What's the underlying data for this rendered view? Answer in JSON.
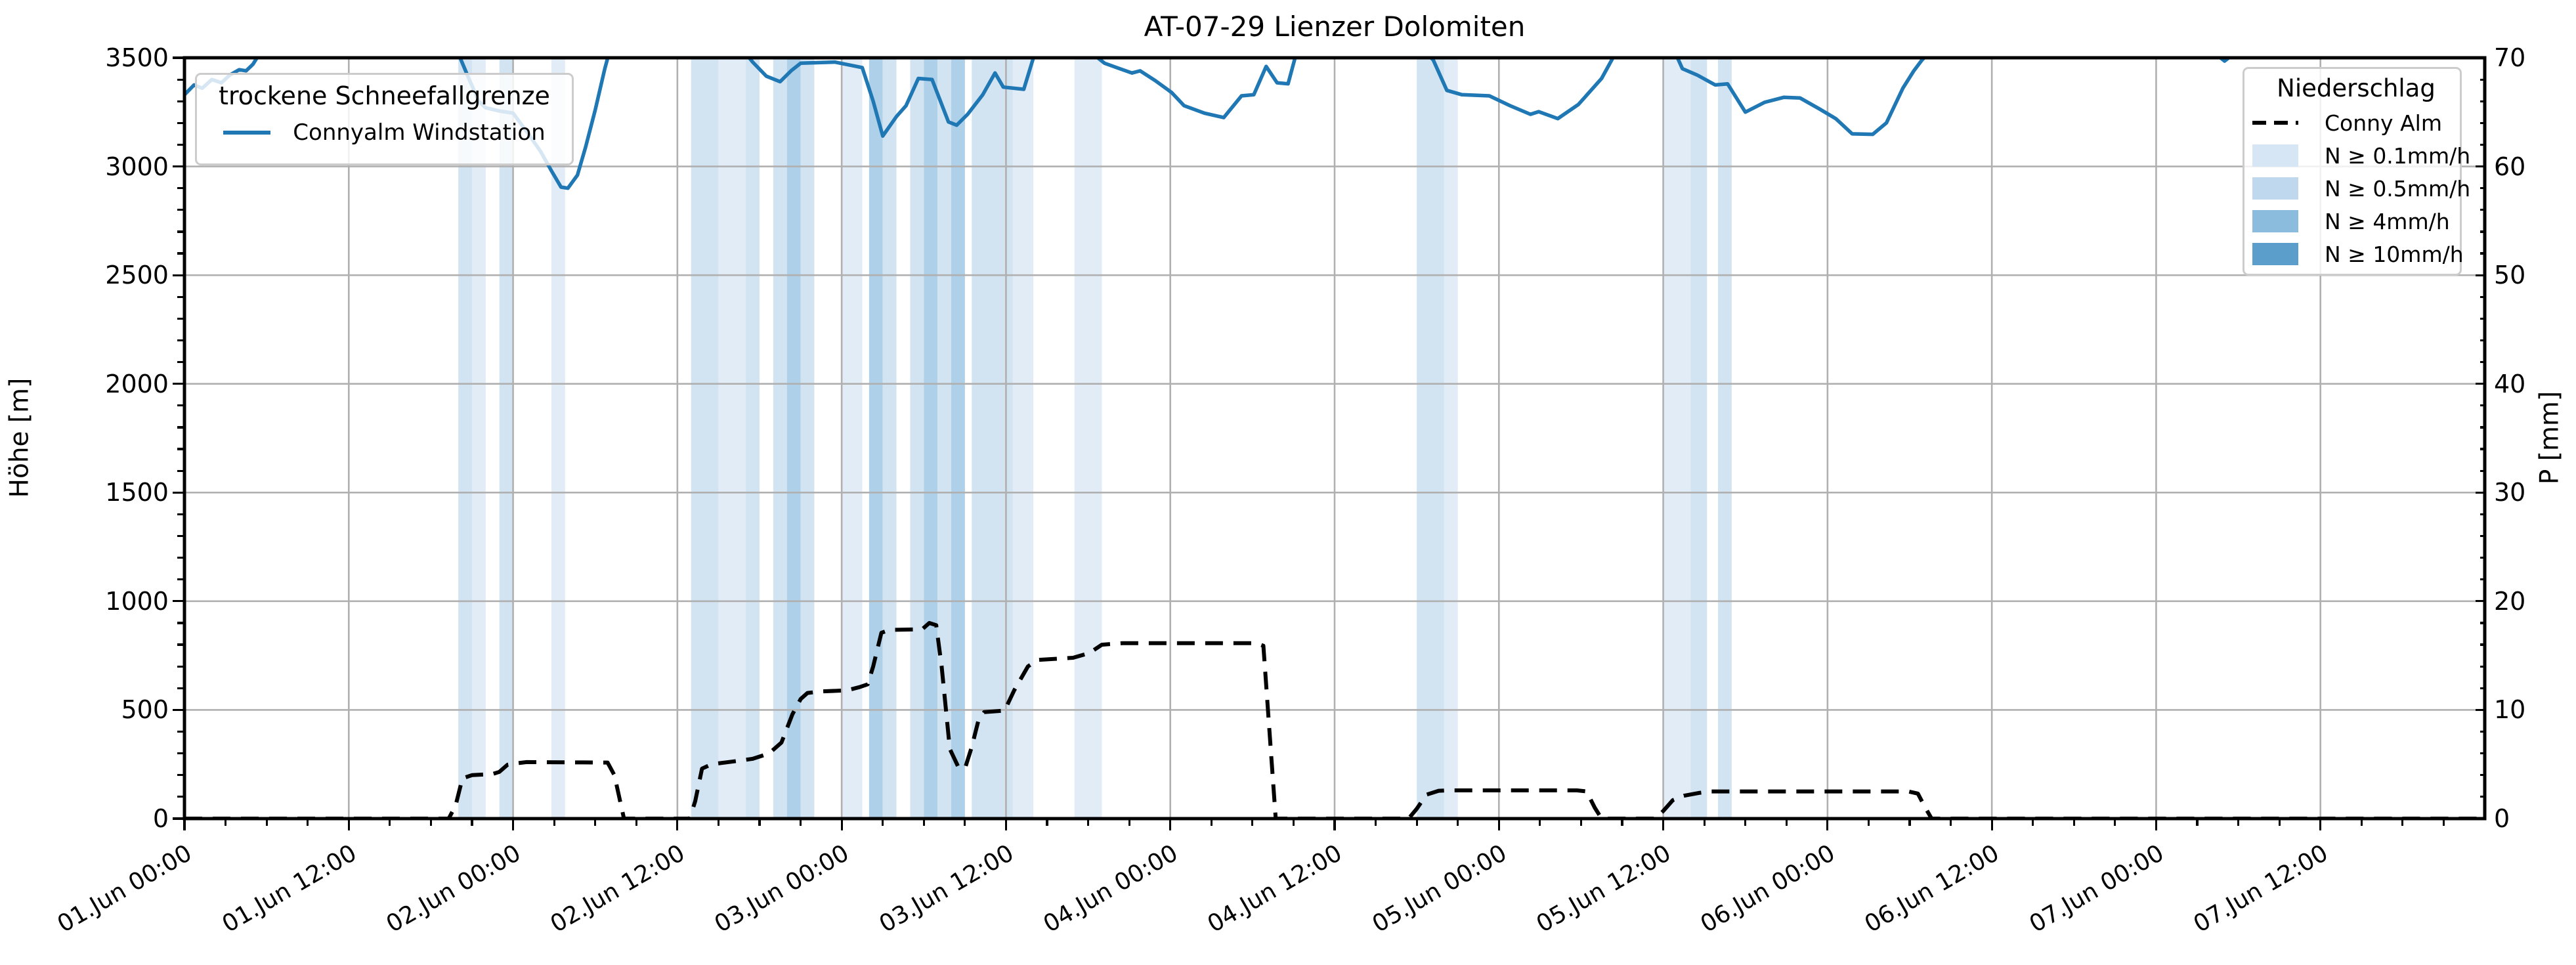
{
  "title": "AT-07-29 Lienzer Dolomiten",
  "axes": {
    "left_label": "Höhe [m]",
    "right_label": "P [mm]",
    "left_ticks": [
      "0",
      "500",
      "1000",
      "1500",
      "2000",
      "2500",
      "3000",
      "3500"
    ],
    "right_ticks": [
      "0",
      "10",
      "20",
      "30",
      "40",
      "50",
      "60",
      "70"
    ],
    "ylim_left": [
      0,
      3500
    ],
    "ylim_right": [
      0,
      70
    ]
  },
  "x_axis": {
    "range_hours": [
      0,
      168
    ],
    "major_step_hours": 12,
    "minor_step_hours": 3,
    "ticks": [
      {
        "t": 0,
        "label": "01.Jun 00:00"
      },
      {
        "t": 12,
        "label": "01.Jun 12:00"
      },
      {
        "t": 24,
        "label": "02.Jun 00:00"
      },
      {
        "t": 36,
        "label": "02.Jun 12:00"
      },
      {
        "t": 48,
        "label": "03.Jun 00:00"
      },
      {
        "t": 60,
        "label": "03.Jun 12:00"
      },
      {
        "t": 72,
        "label": "04.Jun 00:00"
      },
      {
        "t": 84,
        "label": "04.Jun 12:00"
      },
      {
        "t": 96,
        "label": "05.Jun 00:00"
      },
      {
        "t": 108,
        "label": "05.Jun 12:00"
      },
      {
        "t": 120,
        "label": "06.Jun 00:00"
      },
      {
        "t": 132,
        "label": "06.Jun 12:00"
      },
      {
        "t": 144,
        "label": "07.Jun 00:00"
      },
      {
        "t": 156,
        "label": "07.Jun 12:00"
      }
    ]
  },
  "legend_left": {
    "title": "trockene Schneefallgrenze",
    "items": [
      {
        "label": "Connyalm Windstation",
        "color": "#1f77b4",
        "style": "solid-line"
      }
    ]
  },
  "legend_right": {
    "title": "Niederschlag",
    "line_item": {
      "label": "Conny Alm",
      "style": "dashed-line",
      "color": "#000000"
    },
    "band_items": [
      {
        "label": "N ≥ 0.1mm/h",
        "color": "#d7e6f5"
      },
      {
        "label": "N ≥ 0.5mm/h",
        "color": "#c0d8ee"
      },
      {
        "label": "N ≥ 4mm/h",
        "color": "#8cbcdd"
      },
      {
        "label": "N ≥ 10mm/h",
        "color": "#5b9dcb"
      }
    ]
  },
  "chart_data": {
    "type": "line",
    "title": "AT-07-29 Lienzer Dolomiten",
    "xlabel": "",
    "ylabel_left": "Höhe [m]",
    "ylabel_right": "P [mm]",
    "x_unit": "hours since 01.Jun 00:00",
    "xlim_hours": [
      0,
      168
    ],
    "ylim_left": [
      0,
      3500
    ],
    "ylim_right": [
      0,
      70
    ],
    "grid": true,
    "colors": {
      "line_blue": "#1f77b4",
      "line_dashed": "#000000",
      "grid": "#b0b0b0"
    },
    "band_plot_colors": {
      "0.1": "#e2ecf7",
      "0.5": "#d2e3f2",
      "4": "#aed0e8",
      "10": "#86b8da"
    },
    "series": [
      {
        "name": "Connyalm Windstation",
        "axis": "left",
        "style": "solid",
        "color": "#1f77b4",
        "note": "values above 3500 are clipped at plot top",
        "points": [
          [
            0,
            3330
          ],
          [
            0.7,
            3375
          ],
          [
            1.3,
            3360
          ],
          [
            2,
            3400
          ],
          [
            2.7,
            3385
          ],
          [
            3.3,
            3420
          ],
          [
            4,
            3445
          ],
          [
            4.5,
            3440
          ],
          [
            5,
            3470
          ],
          [
            5.5,
            3520
          ],
          [
            20,
            3520
          ],
          [
            20.8,
            3400
          ],
          [
            21.5,
            3300
          ],
          [
            22,
            3270
          ],
          [
            23,
            3255
          ],
          [
            24,
            3245
          ],
          [
            25,
            3160
          ],
          [
            26,
            3070
          ],
          [
            26.8,
            2980
          ],
          [
            27.5,
            2905
          ],
          [
            28,
            2900
          ],
          [
            28.7,
            2960
          ],
          [
            29.3,
            3090
          ],
          [
            30,
            3260
          ],
          [
            30.7,
            3450
          ],
          [
            31,
            3520
          ],
          [
            41,
            3520
          ],
          [
            41.5,
            3480
          ],
          [
            42.5,
            3415
          ],
          [
            43.5,
            3390
          ],
          [
            44.3,
            3440
          ],
          [
            45,
            3475
          ],
          [
            47.5,
            3480
          ],
          [
            49.5,
            3455
          ],
          [
            50.3,
            3300
          ],
          [
            51,
            3140
          ],
          [
            52,
            3230
          ],
          [
            52.7,
            3280
          ],
          [
            53.6,
            3405
          ],
          [
            54.6,
            3400
          ],
          [
            55.8,
            3205
          ],
          [
            56.4,
            3190
          ],
          [
            57.2,
            3240
          ],
          [
            58.3,
            3330
          ],
          [
            59.2,
            3430
          ],
          [
            59.8,
            3365
          ],
          [
            61.3,
            3355
          ],
          [
            62.1,
            3520
          ],
          [
            66.3,
            3520
          ],
          [
            67.2,
            3475
          ],
          [
            68.3,
            3450
          ],
          [
            69.2,
            3430
          ],
          [
            69.8,
            3440
          ],
          [
            70.9,
            3395
          ],
          [
            72.1,
            3340
          ],
          [
            73,
            3280
          ],
          [
            74.5,
            3245
          ],
          [
            75.9,
            3225
          ],
          [
            77.2,
            3325
          ],
          [
            78.1,
            3330
          ],
          [
            79,
            3460
          ],
          [
            79.8,
            3385
          ],
          [
            80.6,
            3380
          ],
          [
            81.2,
            3520
          ],
          [
            90.7,
            3520
          ],
          [
            91.2,
            3490
          ],
          [
            92.2,
            3350
          ],
          [
            93.3,
            3330
          ],
          [
            95.3,
            3325
          ],
          [
            96.8,
            3280
          ],
          [
            98.3,
            3240
          ],
          [
            98.9,
            3252
          ],
          [
            100.3,
            3220
          ],
          [
            101.8,
            3285
          ],
          [
            103.5,
            3405
          ],
          [
            104.5,
            3520
          ],
          [
            108.9,
            3520
          ],
          [
            109.4,
            3450
          ],
          [
            110.5,
            3420
          ],
          [
            111.8,
            3375
          ],
          [
            112.7,
            3380
          ],
          [
            114,
            3250
          ],
          [
            115.4,
            3295
          ],
          [
            116.8,
            3318
          ],
          [
            118,
            3315
          ],
          [
            119.4,
            3265
          ],
          [
            120.6,
            3220
          ],
          [
            121.8,
            3150
          ],
          [
            123.3,
            3148
          ],
          [
            124.3,
            3200
          ],
          [
            125.5,
            3360
          ],
          [
            126.3,
            3440
          ],
          [
            126.9,
            3490
          ],
          [
            127.4,
            3520
          ],
          [
            148.3,
            3520
          ],
          [
            149,
            3485
          ],
          [
            149.7,
            3520
          ],
          [
            168,
            3520
          ]
        ]
      },
      {
        "name": "Conny Alm",
        "axis": "left",
        "style": "dashed",
        "color": "#000000",
        "points": [
          [
            0,
            0
          ],
          [
            19.3,
            0
          ],
          [
            19.8,
            60
          ],
          [
            20.3,
            185
          ],
          [
            21,
            200
          ],
          [
            22.5,
            205
          ],
          [
            23,
            215
          ],
          [
            23.6,
            248
          ],
          [
            24.3,
            255
          ],
          [
            25,
            260
          ],
          [
            30.9,
            258
          ],
          [
            31.4,
            200
          ],
          [
            32.1,
            0
          ],
          [
            36.9,
            0
          ],
          [
            37.3,
            80
          ],
          [
            37.8,
            230
          ],
          [
            38.5,
            250
          ],
          [
            40,
            262
          ],
          [
            41.5,
            275
          ],
          [
            42.7,
            300
          ],
          [
            43.6,
            350
          ],
          [
            44.4,
            480
          ],
          [
            45,
            550
          ],
          [
            45.5,
            578
          ],
          [
            46.5,
            585
          ],
          [
            48.4,
            590
          ],
          [
            49.3,
            605
          ],
          [
            49.9,
            618
          ],
          [
            50.3,
            700
          ],
          [
            50.9,
            855
          ],
          [
            51.5,
            868
          ],
          [
            53.2,
            870
          ],
          [
            53.9,
            872
          ],
          [
            54.4,
            900
          ],
          [
            54.9,
            890
          ],
          [
            55.3,
            700
          ],
          [
            55.9,
            320
          ],
          [
            56.5,
            240
          ],
          [
            57,
            230
          ],
          [
            57.5,
            330
          ],
          [
            58,
            455
          ],
          [
            58.4,
            490
          ],
          [
            59.9,
            497
          ],
          [
            60.6,
            590
          ],
          [
            61.6,
            700
          ],
          [
            62.3,
            730
          ],
          [
            64.9,
            740
          ],
          [
            66.1,
            762
          ],
          [
            67,
            800
          ],
          [
            68.5,
            807
          ],
          [
            78.3,
            807
          ],
          [
            78.8,
            795
          ],
          [
            79.3,
            350
          ],
          [
            79.7,
            0
          ],
          [
            89.4,
            0
          ],
          [
            90,
            45
          ],
          [
            90.7,
            110
          ],
          [
            91.6,
            128
          ],
          [
            92.2,
            130
          ],
          [
            101.7,
            130
          ],
          [
            102.4,
            125
          ],
          [
            103,
            50
          ],
          [
            103.5,
            0
          ],
          [
            107.4,
            0
          ],
          [
            108,
            35
          ],
          [
            108.7,
            85
          ],
          [
            109.5,
            105
          ],
          [
            110.6,
            118
          ],
          [
            111.5,
            125
          ],
          [
            125.9,
            125
          ],
          [
            126.6,
            115
          ],
          [
            127.1,
            55
          ],
          [
            127.6,
            0
          ],
          [
            168,
            0
          ]
        ]
      }
    ],
    "precip_bands": [
      {
        "start": 20,
        "end": 21,
        "class": "0.5"
      },
      {
        "start": 21,
        "end": 22,
        "class": "0.1"
      },
      {
        "start": 23,
        "end": 24,
        "class": "0.5"
      },
      {
        "start": 26.8,
        "end": 27.8,
        "class": "0.1"
      },
      {
        "start": 37,
        "end": 39,
        "class": "0.5"
      },
      {
        "start": 39,
        "end": 41,
        "class": "0.1"
      },
      {
        "start": 41,
        "end": 42,
        "class": "0.5"
      },
      {
        "start": 43,
        "end": 44,
        "class": "0.5"
      },
      {
        "start": 44,
        "end": 45,
        "class": "4"
      },
      {
        "start": 45,
        "end": 46,
        "class": "0.5"
      },
      {
        "start": 48,
        "end": 49.5,
        "class": "0.1"
      },
      {
        "start": 50,
        "end": 51,
        "class": "4"
      },
      {
        "start": 51,
        "end": 52,
        "class": "0.5"
      },
      {
        "start": 53,
        "end": 54,
        "class": "0.5"
      },
      {
        "start": 54,
        "end": 55,
        "class": "4"
      },
      {
        "start": 55,
        "end": 56,
        "class": "0.5"
      },
      {
        "start": 56,
        "end": 57,
        "class": "4"
      },
      {
        "start": 57.5,
        "end": 60.5,
        "class": "0.5"
      },
      {
        "start": 60.5,
        "end": 62,
        "class": "0.1"
      },
      {
        "start": 65,
        "end": 67,
        "class": "0.1"
      },
      {
        "start": 90,
        "end": 92,
        "class": "0.5"
      },
      {
        "start": 92,
        "end": 93,
        "class": "0.1"
      },
      {
        "start": 108,
        "end": 110,
        "class": "0.1"
      },
      {
        "start": 110,
        "end": 111.2,
        "class": "0.5"
      },
      {
        "start": 112,
        "end": 113,
        "class": "0.5"
      }
    ]
  }
}
